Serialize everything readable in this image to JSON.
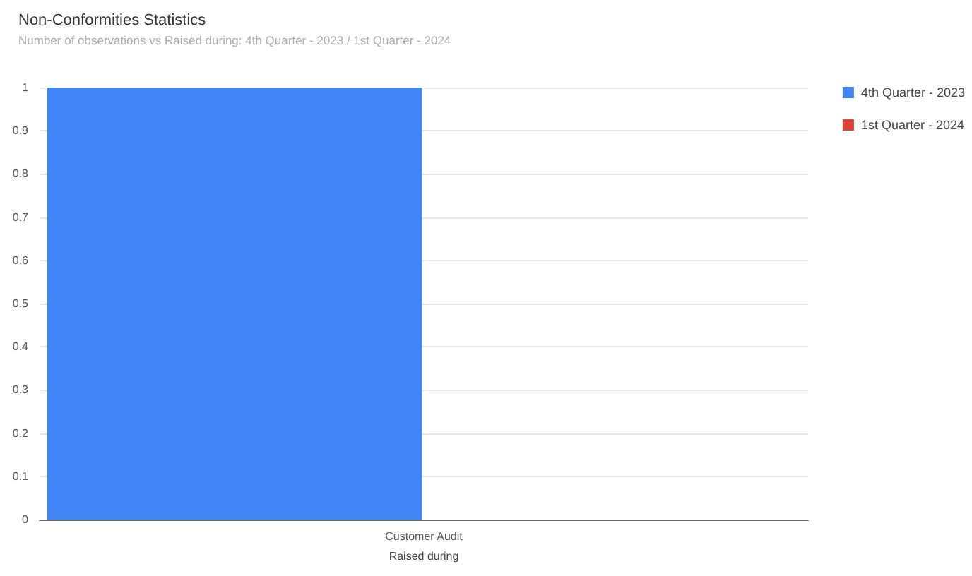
{
  "chart_data": {
    "type": "bar",
    "title": "Non-Conformities Statistics",
    "subtitle": "Number of observations vs Raised during: 4th Quarter - 2023 / 1st Quarter - 2024",
    "xlabel": "Raised during",
    "categories": [
      "Customer Audit"
    ],
    "series": [
      {
        "name": "4th Quarter - 2023",
        "color": "#4285f4",
        "values": [
          1
        ]
      },
      {
        "name": "1st Quarter - 2024",
        "color": "#db4437",
        "values": [
          0
        ]
      }
    ],
    "ylim": [
      0,
      1
    ],
    "yticks": [
      0,
      0.1,
      0.2,
      0.3,
      0.4,
      0.5,
      0.6,
      0.7,
      0.8,
      0.9,
      1
    ],
    "grid": "y",
    "legend": "right"
  }
}
